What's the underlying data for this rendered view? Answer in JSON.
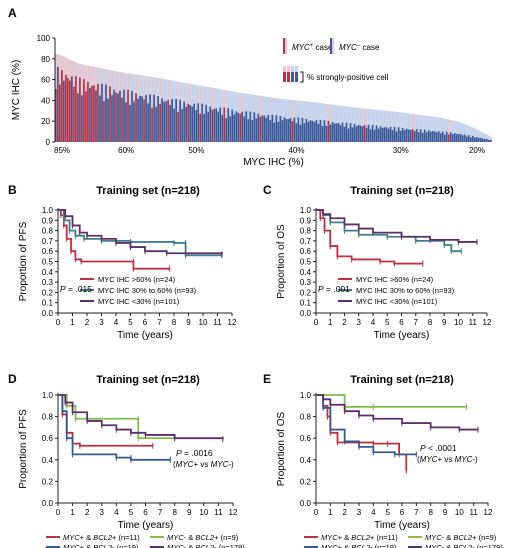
{
  "colors": {
    "pos": "#c0303c",
    "neg": "#3c5a9a",
    "pos_light": "#f0c4c8",
    "neg_light": "#c6d3ea",
    "teal": "#3f7f91",
    "purple": "#5e2f6e",
    "green": "#7fbf4a",
    "blue_dark": "#2f5d94",
    "axis": "#231f20"
  },
  "chart_data": [
    {
      "panel": "A",
      "type": "bar",
      "ylabel": "MYC IHC (%)",
      "xlabel": "MYC IHC (%)",
      "ylim": [
        0,
        100
      ],
      "yticks": [
        "100",
        "80",
        "60",
        "40",
        "20",
        "0"
      ],
      "xtick_labels": [
        "85%",
        "60%",
        "50%",
        "40%",
        "30%",
        "20%"
      ],
      "xtick_category_index": [
        3,
        35,
        70,
        120,
        172,
        210
      ],
      "n_cases": 218,
      "total_curve": [
        [
          0,
          85
        ],
        [
          4,
          82
        ],
        [
          12,
          75
        ],
        [
          30,
          68
        ],
        [
          50,
          62
        ],
        [
          70,
          55
        ],
        [
          90,
          48
        ],
        [
          110,
          42
        ],
        [
          130,
          38
        ],
        [
          150,
          33
        ],
        [
          170,
          29
        ],
        [
          190,
          24
        ],
        [
          200,
          20
        ],
        [
          208,
          14
        ],
        [
          214,
          8
        ],
        [
          218,
          4
        ]
      ],
      "strong_ratio_by_region": [
        [
          0,
          0.75
        ],
        [
          40,
          0.65
        ],
        [
          100,
          0.55
        ],
        [
          160,
          0.45
        ],
        [
          218,
          0.35
        ]
      ],
      "myc_positive_case_indices": [
        0,
        2,
        3,
        5,
        6,
        7,
        9,
        10,
        12,
        14,
        15,
        16,
        18,
        19,
        21,
        24,
        27,
        30,
        33,
        36,
        40,
        44,
        48,
        52,
        56,
        61,
        66,
        72,
        78,
        84,
        92,
        102,
        118,
        136,
        154,
        178,
        196
      ],
      "legend": {
        "pos_label": "MYC",
        "pos_sup": "+",
        "neg_label": "MYC",
        "neg_sup": "−",
        "case_word": " case",
        "strong_label": "% strongly-positive cell"
      }
    },
    {
      "panel": "B",
      "type": "line",
      "title": "Training set (n=218)",
      "ylabel": "Proportion of PFS",
      "xlabel": "Time (years)",
      "xlim": [
        0,
        12
      ],
      "ylim": [
        0,
        1.0
      ],
      "xticks": [
        "0",
        "1",
        "2",
        "3",
        "4",
        "5",
        "6",
        "7",
        "8",
        "9",
        "10",
        "11",
        "12"
      ],
      "yticks": [
        "0.0",
        "0.1",
        "0.2",
        "0.3",
        "0.4",
        "0.5",
        "0.6",
        "0.7",
        "0.8",
        "0.9",
        "1.0"
      ],
      "pvalue": "P = .015",
      "series": [
        {
          "name": "MYC IHC >60% (n=24)",
          "color_key": "pos",
          "points": [
            [
              0,
              1.0
            ],
            [
              0.2,
              0.95
            ],
            [
              0.4,
              0.85
            ],
            [
              0.6,
              0.72
            ],
            [
              0.9,
              0.6
            ],
            [
              1.2,
              0.52
            ],
            [
              1.6,
              0.5
            ],
            [
              5.2,
              0.5
            ],
            [
              5.2,
              0.43
            ],
            [
              7.7,
              0.43
            ]
          ]
        },
        {
          "name": "MYC IHC 30% to 60% (n=93)",
          "color_key": "teal",
          "points": [
            [
              0,
              1.0
            ],
            [
              0.4,
              0.9
            ],
            [
              0.8,
              0.8
            ],
            [
              1.2,
              0.75
            ],
            [
              1.8,
              0.72
            ],
            [
              3.0,
              0.7
            ],
            [
              5.0,
              0.69
            ],
            [
              8.0,
              0.68
            ],
            [
              8.8,
              0.68
            ],
            [
              8.8,
              0.56
            ],
            [
              11.3,
              0.56
            ]
          ]
        },
        {
          "name": "MYC IHC <30% (n=101)",
          "color_key": "purple",
          "points": [
            [
              0,
              1.0
            ],
            [
              0.5,
              0.94
            ],
            [
              1.0,
              0.85
            ],
            [
              1.5,
              0.78
            ],
            [
              2.0,
              0.75
            ],
            [
              3.0,
              0.72
            ],
            [
              4.0,
              0.68
            ],
            [
              5.0,
              0.64
            ],
            [
              6.0,
              0.6
            ],
            [
              7.5,
              0.58
            ],
            [
              11.3,
              0.57
            ]
          ]
        }
      ]
    },
    {
      "panel": "C",
      "type": "line",
      "title": "Training set (n=218)",
      "ylabel": "Proportion of OS",
      "xlabel": "Time (years)",
      "xlim": [
        0,
        12
      ],
      "ylim": [
        0,
        1.0
      ],
      "xticks": [
        "0",
        "1",
        "2",
        "3",
        "4",
        "5",
        "6",
        "7",
        "8",
        "9",
        "10",
        "11",
        "12"
      ],
      "yticks": [
        "0.0",
        "0.1",
        "0.2",
        "0.3",
        "0.4",
        "0.5",
        "0.6",
        "0.7",
        "0.8",
        "0.9",
        "1.0"
      ],
      "pvalue": "P = .001",
      "series": [
        {
          "name": "MYC IHC >60% (n=24)",
          "color_key": "pos",
          "points": [
            [
              0,
              1.0
            ],
            [
              0.3,
              0.92
            ],
            [
              0.6,
              0.8
            ],
            [
              1.0,
              0.65
            ],
            [
              1.5,
              0.55
            ],
            [
              2.5,
              0.52
            ],
            [
              4.5,
              0.5
            ],
            [
              5.5,
              0.48
            ],
            [
              7.5,
              0.48
            ]
          ]
        },
        {
          "name": "MYC IHC 30% to 60% (n=93)",
          "color_key": "teal",
          "points": [
            [
              0,
              1.0
            ],
            [
              0.5,
              0.95
            ],
            [
              1.0,
              0.88
            ],
            [
              2.0,
              0.8
            ],
            [
              3.0,
              0.76
            ],
            [
              5.0,
              0.74
            ],
            [
              7.0,
              0.7
            ],
            [
              9.0,
              0.66
            ],
            [
              9.5,
              0.6
            ],
            [
              10.2,
              0.6
            ]
          ]
        },
        {
          "name": "MYC IHC <30% (n=101)",
          "color_key": "purple",
          "points": [
            [
              0,
              1.0
            ],
            [
              0.5,
              0.96
            ],
            [
              1.0,
              0.92
            ],
            [
              2.0,
              0.86
            ],
            [
              3.0,
              0.82
            ],
            [
              4.0,
              0.78
            ],
            [
              6.0,
              0.74
            ],
            [
              8.0,
              0.71
            ],
            [
              10.0,
              0.69
            ],
            [
              11.3,
              0.69
            ]
          ]
        }
      ]
    },
    {
      "panel": "D",
      "type": "line",
      "title": "Training set (n=218)",
      "ylabel": "Proportion of PFS",
      "xlabel": "Time (years)",
      "xlim": [
        0,
        12
      ],
      "ylim": [
        0,
        1.0
      ],
      "xticks": [
        "0",
        "1",
        "2",
        "3",
        "4",
        "5",
        "6",
        "7",
        "8",
        "9",
        "10",
        "11",
        "12"
      ],
      "yticks": [
        "0.0",
        "0.2",
        "0.4",
        "0.6",
        "0.8",
        "1.0"
      ],
      "pvalue": "P = .0016",
      "pnote": "(MYC+ vs MYC-)",
      "series": [
        {
          "name": "MYC+ & BCL2+ (n=11)",
          "color_key": "pos",
          "points": [
            [
              0,
              1.0
            ],
            [
              0.3,
              0.82
            ],
            [
              0.6,
              0.65
            ],
            [
              1.0,
              0.55
            ],
            [
              1.5,
              0.53
            ],
            [
              6.5,
              0.53
            ]
          ]
        },
        {
          "name": "MYC+ & BCL2- (n=19)",
          "color_key": "blue_dark",
          "points": [
            [
              0,
              1.0
            ],
            [
              0.3,
              0.85
            ],
            [
              0.6,
              0.6
            ],
            [
              1.0,
              0.45
            ],
            [
              4.0,
              0.42
            ],
            [
              5.0,
              0.42
            ],
            [
              5.0,
              0.4
            ],
            [
              7.7,
              0.4
            ]
          ]
        },
        {
          "name": "MYC- & BCL2+ (n=9)",
          "color_key": "green",
          "points": [
            [
              0,
              1.0
            ],
            [
              0.6,
              0.9
            ],
            [
              1.2,
              0.78
            ],
            [
              5.5,
              0.78
            ],
            [
              5.5,
              0.6
            ],
            [
              8.0,
              0.6
            ]
          ]
        },
        {
          "name": "MYC- & BCL2- (n=179)",
          "color_key": "purple",
          "points": [
            [
              0,
              1.0
            ],
            [
              0.5,
              0.93
            ],
            [
              1.0,
              0.84
            ],
            [
              2.0,
              0.76
            ],
            [
              3.0,
              0.72
            ],
            [
              4.0,
              0.68
            ],
            [
              5.0,
              0.65
            ],
            [
              6.0,
              0.63
            ],
            [
              8.0,
              0.6
            ],
            [
              11.3,
              0.59
            ]
          ]
        }
      ]
    },
    {
      "panel": "E",
      "type": "line",
      "title": "Training set (n=218)",
      "ylabel": "Proportion of OS",
      "xlabel": "Time (years)",
      "xlim": [
        0,
        12
      ],
      "ylim": [
        0,
        1.0
      ],
      "xticks": [
        "0",
        "1",
        "2",
        "3",
        "4",
        "5",
        "6",
        "7",
        "8",
        "9",
        "10",
        "11",
        "12"
      ],
      "yticks": [
        "0.0",
        "0.2",
        "0.4",
        "0.6",
        "0.8",
        "1.0"
      ],
      "pvalue": "P < .0001",
      "pnote": "(MYC+ vs MYC-)",
      "series": [
        {
          "name": "MYC+ & BCL2+ (n=11)",
          "color_key": "pos",
          "points": [
            [
              0,
              1.0
            ],
            [
              0.5,
              0.9
            ],
            [
              0.8,
              0.8
            ],
            [
              1.0,
              0.65
            ],
            [
              1.5,
              0.56
            ],
            [
              4.0,
              0.55
            ],
            [
              5.0,
              0.55
            ],
            [
              5.8,
              0.45
            ],
            [
              6.3,
              0.3
            ]
          ]
        },
        {
          "name": "MYC+ & BCL2- (n=19)",
          "color_key": "blue_dark",
          "points": [
            [
              0,
              1.0
            ],
            [
              0.5,
              0.88
            ],
            [
              1.0,
              0.68
            ],
            [
              2.0,
              0.57
            ],
            [
              3.0,
              0.52
            ],
            [
              4.0,
              0.47
            ],
            [
              5.5,
              0.45
            ],
            [
              7.0,
              0.45
            ]
          ]
        },
        {
          "name": "MYC- & BCL2+ (n=9)",
          "color_key": "green",
          "points": [
            [
              0,
              1.0
            ],
            [
              2.0,
              0.89
            ],
            [
              4.0,
              0.89
            ],
            [
              10.5,
              0.89
            ]
          ]
        },
        {
          "name": "MYC- & BCL2- (n=179)",
          "color_key": "purple",
          "points": [
            [
              0,
              1.0
            ],
            [
              0.5,
              0.96
            ],
            [
              1.0,
              0.91
            ],
            [
              2.0,
              0.85
            ],
            [
              3.0,
              0.81
            ],
            [
              4.0,
              0.78
            ],
            [
              6.0,
              0.74
            ],
            [
              8.0,
              0.7
            ],
            [
              10.0,
              0.68
            ],
            [
              11.3,
              0.68
            ]
          ]
        }
      ]
    }
  ]
}
